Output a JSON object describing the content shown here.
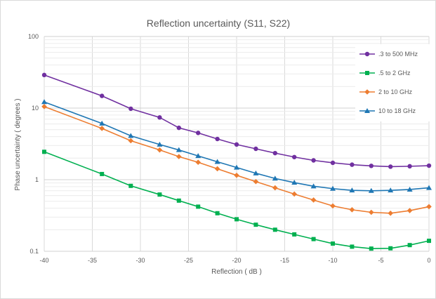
{
  "chart_data": {
    "type": "line",
    "title": "Reflection uncertainty (S11, S22)",
    "xlabel": "Reflection ( dB )",
    "ylabel": "Phase uncertainty ( degrees )",
    "xlim": [
      -40,
      0
    ],
    "ylim": [
      0.1,
      100
    ],
    "y_scale": "log",
    "grid": true,
    "legend_position": "top-right",
    "x_ticks": [
      "-40",
      "-35",
      "-30",
      "-25",
      "-20",
      "-15",
      "-10",
      "-5",
      "0"
    ],
    "y_ticks": [
      "0.1",
      "1",
      "10",
      "100"
    ],
    "series": [
      {
        "name": ".3 to 500 MHz",
        "color": "#7030a0",
        "marker": "circle",
        "x": [
          -40,
          -34,
          -31,
          -28,
          -26,
          -24,
          -22,
          -20,
          -18,
          -16,
          -14,
          -12,
          -10,
          -8,
          -6,
          -4,
          -2,
          0
        ],
        "y": [
          29,
          14.8,
          9.8,
          7.4,
          5.3,
          4.5,
          3.7,
          3.1,
          2.7,
          2.35,
          2.07,
          1.86,
          1.72,
          1.62,
          1.56,
          1.52,
          1.54,
          1.57
        ]
      },
      {
        "name": ".5 to 2 GHz",
        "color": "#00b050",
        "marker": "square",
        "x": [
          -40,
          -34,
          -31,
          -28,
          -26,
          -24,
          -22,
          -20,
          -18,
          -16,
          -14,
          -12,
          -10,
          -8,
          -6,
          -4,
          -2,
          0
        ],
        "y": [
          2.45,
          1.2,
          0.82,
          0.62,
          0.51,
          0.42,
          0.34,
          0.28,
          0.235,
          0.2,
          0.172,
          0.148,
          0.128,
          0.116,
          0.109,
          0.11,
          0.122,
          0.14
        ]
      },
      {
        "name": "2 to 10 GHz",
        "color": "#ed7d31",
        "marker": "diamond",
        "x": [
          -40,
          -34,
          -31,
          -28,
          -26,
          -24,
          -22,
          -20,
          -18,
          -16,
          -14,
          -12,
          -10,
          -8,
          -6,
          -4,
          -2,
          0
        ],
        "y": [
          10.5,
          5.2,
          3.5,
          2.6,
          2.1,
          1.75,
          1.42,
          1.15,
          0.94,
          0.77,
          0.63,
          0.52,
          0.43,
          0.38,
          0.35,
          0.34,
          0.37,
          0.42
        ]
      },
      {
        "name": "10 to 18 GHz",
        "color": "#1f77b4",
        "marker": "triangle",
        "x": [
          -40,
          -34,
          -31,
          -28,
          -26,
          -24,
          -22,
          -20,
          -18,
          -16,
          -14,
          -12,
          -10,
          -8,
          -6,
          -4,
          -2,
          0
        ],
        "y": [
          12.2,
          6.1,
          4.1,
          3.1,
          2.6,
          2.15,
          1.78,
          1.48,
          1.23,
          1.04,
          0.91,
          0.81,
          0.75,
          0.71,
          0.7,
          0.71,
          0.73,
          0.77
        ]
      }
    ]
  }
}
